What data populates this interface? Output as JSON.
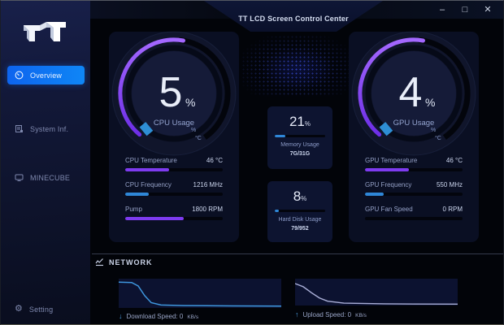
{
  "window": {
    "title": "TT LCD Screen Control Center",
    "controls": {
      "minimize": "–",
      "maximize": "□",
      "close": "✕"
    }
  },
  "sidebar": {
    "items": [
      {
        "label": "Overview",
        "active": true
      },
      {
        "label": "System Inf.",
        "active": false
      },
      {
        "label": "MINECUBE",
        "active": false
      }
    ],
    "footer": {
      "label": "Setting",
      "gear_glyph": "⚙"
    }
  },
  "cpu": {
    "usage": {
      "value": "5",
      "unit": "%",
      "label": "CPU Usage",
      "scale_marks": [
        "%",
        "°C"
      ]
    },
    "rows": [
      {
        "label": "CPU Temperature",
        "value": "46 °C",
        "percent": 45,
        "color": "purple"
      },
      {
        "label": "CPU Frequency",
        "value": "1216 MHz",
        "percent": 24,
        "color": "blue"
      },
      {
        "label": "Pump",
        "value": "1800 RPM",
        "percent": 60,
        "color": "purple"
      }
    ]
  },
  "gpu": {
    "usage": {
      "value": "4",
      "unit": "%",
      "label": "GPU Usage",
      "scale_marks": [
        "%",
        "°C"
      ]
    },
    "rows": [
      {
        "label": "GPU Temperature",
        "value": "46 °C",
        "percent": 45,
        "color": "purple"
      },
      {
        "label": "GPU Frequency",
        "value": "550 MHz",
        "percent": 19,
        "color": "blue"
      },
      {
        "label": "GPU Fan Speed",
        "value": "0 RPM",
        "percent": 0,
        "color": "blue"
      }
    ]
  },
  "memory": {
    "value": "21",
    "unit": "%",
    "label": "Memory Usage",
    "detail": "7G/31G",
    "percent": 21,
    "color": "blue"
  },
  "disk": {
    "value": "8",
    "unit": "%",
    "label": "Hard Disk Usage",
    "detail": "79/952",
    "percent": 8,
    "color": "blue"
  },
  "network": {
    "title": "NETWORK",
    "download": {
      "arrow": "↓",
      "label": "Download Speed:",
      "value": "0",
      "unit": "KB/s",
      "color": "#3e96dd",
      "points": [
        [
          0,
          12
        ],
        [
          8,
          13
        ],
        [
          12,
          25
        ],
        [
          16,
          58
        ],
        [
          20,
          82
        ],
        [
          26,
          90
        ],
        [
          40,
          92
        ],
        [
          70,
          93
        ],
        [
          100,
          94
        ]
      ]
    },
    "upload": {
      "arrow": "↑",
      "label": "Upload Speed:",
      "value": "0",
      "unit": "KB/s",
      "color": "#a9aed6",
      "points": [
        [
          0,
          18
        ],
        [
          5,
          30
        ],
        [
          10,
          52
        ],
        [
          15,
          72
        ],
        [
          20,
          84
        ],
        [
          30,
          91
        ],
        [
          55,
          94
        ],
        [
          100,
          95
        ]
      ]
    }
  },
  "colors": {
    "purple": "#7e3bf0",
    "blue": "#2f87d8",
    "accent": "#0f74f0"
  }
}
